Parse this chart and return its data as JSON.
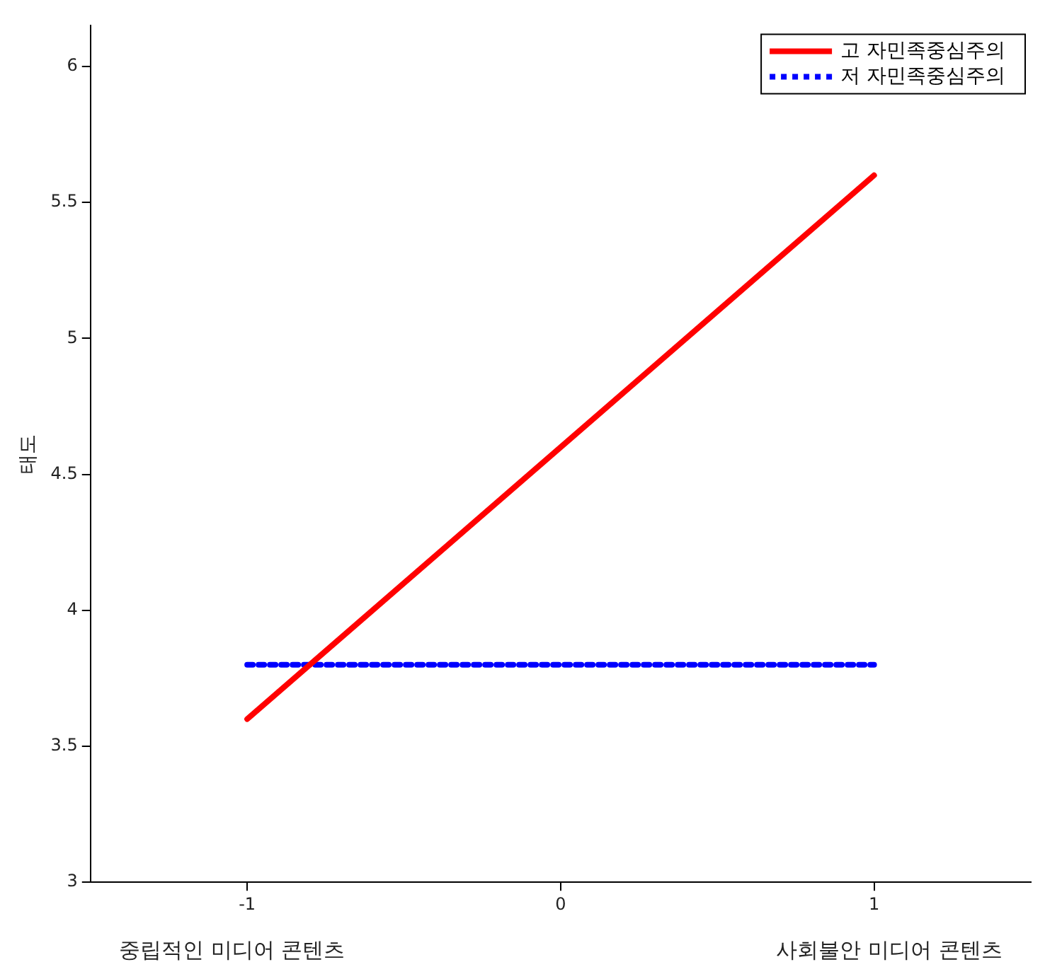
{
  "chart_data": {
    "type": "line",
    "ylabel": "태도",
    "xlim": [
      -1.5,
      1.5
    ],
    "xticks": [
      -1,
      0,
      1
    ],
    "ylim": [
      3,
      6.15
    ],
    "yticks": [
      3,
      3.5,
      4,
      4.5,
      5,
      5.5,
      6
    ],
    "grid": false,
    "legend": "top right",
    "marker": "none",
    "x": [
      -1,
      1
    ],
    "series": [
      {
        "name": "고 자민족중심주의",
        "color": "#ff0000",
        "values": [
          3.6,
          5.6
        ],
        "line_style": "solid"
      },
      {
        "name": "저 자민족중심주의",
        "color": "#0000ff",
        "values": [
          3.8,
          3.8
        ],
        "line_style": "dotted"
      }
    ],
    "annotations": [
      "중립적인 미디어 콘텐츠",
      "사회불안 미디어 콘텐츠"
    ]
  }
}
